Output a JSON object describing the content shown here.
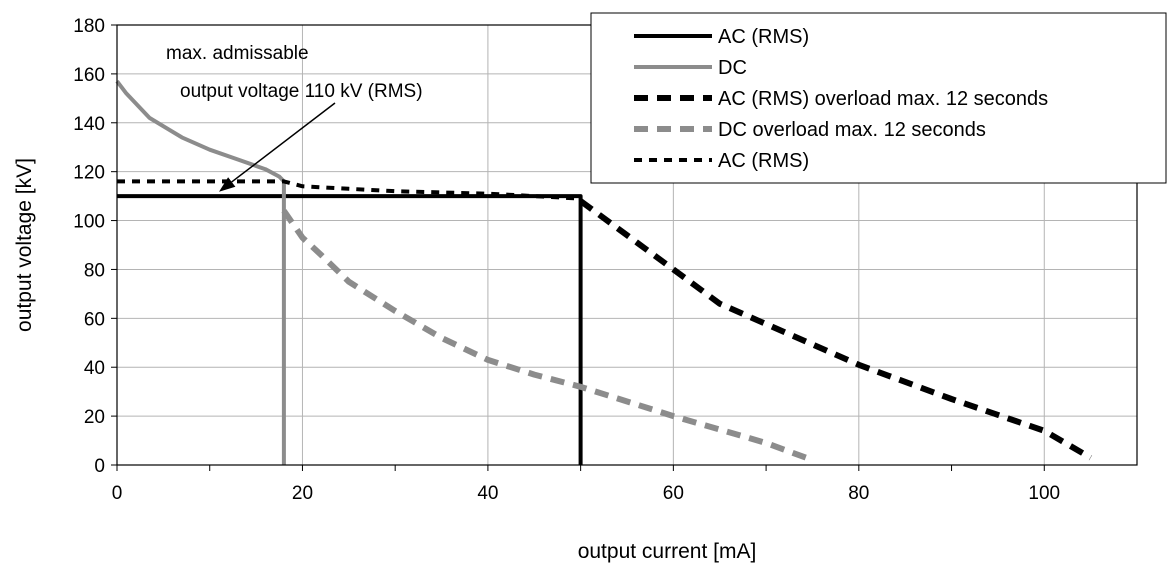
{
  "chart_data": {
    "type": "line",
    "title": "",
    "xlabel": "output current [mA]",
    "ylabel": "output voltage [kV]",
    "xlim": [
      0,
      110
    ],
    "ylim": [
      0,
      180
    ],
    "xticks": [
      0,
      20,
      40,
      60,
      80,
      100
    ],
    "yticks": [
      0,
      20,
      40,
      60,
      80,
      100,
      120,
      140,
      160,
      180
    ],
    "grid": true,
    "legend_position": "top-right",
    "annotation": {
      "lines": [
        "max. admissable",
        "output voltage 110 kV (RMS)"
      ],
      "arrow_target": [
        11,
        111
      ]
    },
    "series": [
      {
        "name": "AC (RMS)",
        "color": "#000000",
        "style": "solid",
        "x": [
          0,
          50,
          50
        ],
        "y": [
          110,
          110,
          0
        ]
      },
      {
        "name": "DC",
        "color": "#8c8c8c",
        "style": "solid",
        "x": [
          0,
          1,
          3.5,
          7,
          10,
          13,
          16,
          17.5,
          18,
          18
        ],
        "y": [
          157,
          152,
          142,
          134,
          129,
          125,
          121,
          118,
          116,
          0
        ]
      },
      {
        "name": "AC (RMS) overload max. 12 seconds",
        "color": "#000000",
        "style": "dashed",
        "x": [
          50,
          60,
          65,
          80,
          90,
          100,
          105
        ],
        "y": [
          108,
          80,
          66,
          41,
          27,
          14,
          3
        ]
      },
      {
        "name": "DC overload max. 12 seconds",
        "color": "#8c8c8c",
        "style": "dashed",
        "x": [
          18,
          20,
          22,
          25,
          30,
          35,
          40,
          45,
          50,
          60,
          70,
          75
        ],
        "y": [
          104,
          93,
          86,
          75,
          63,
          52,
          43,
          37,
          32,
          20,
          9,
          2
        ]
      },
      {
        "name": "AC (RMS)",
        "color": "#000000",
        "style": "dotted",
        "x": [
          0,
          18,
          20,
          25,
          30,
          40,
          45,
          50
        ],
        "y": [
          116,
          116,
          114,
          113,
          112,
          111,
          110,
          109
        ]
      }
    ]
  }
}
